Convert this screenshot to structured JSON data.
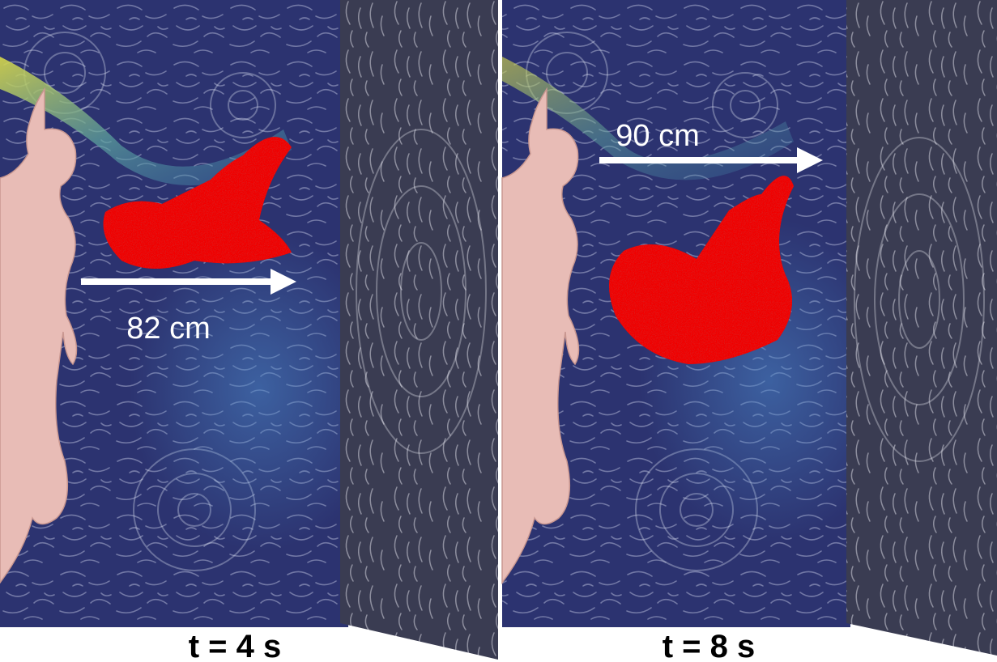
{
  "panels": [
    {
      "distance": "82 cm",
      "time": "t = 4 s"
    },
    {
      "distance": "90 cm",
      "time": "t = 8 s"
    }
  ]
}
